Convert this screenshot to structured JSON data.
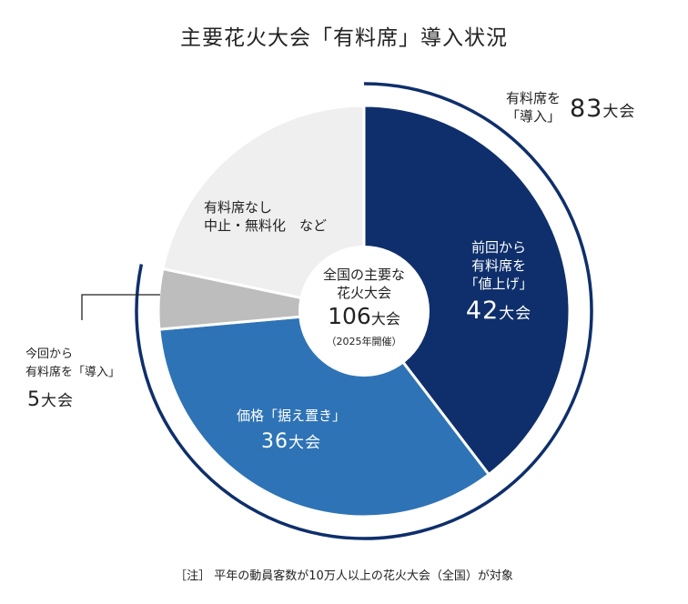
{
  "chart_data": {
    "type": "pie",
    "title": "主要花火大会「有料席」導入状況",
    "center_label": {
      "line1": "全国の主要な",
      "line2": "花火大会",
      "value": "106",
      "unit": "大会",
      "note": "（2025年開催）"
    },
    "total": 106,
    "slices": [
      {
        "label_lines": [
          "前回から",
          "有料席を",
          "「値上げ」"
        ],
        "value": 42,
        "value_text": "42",
        "unit": "大会",
        "color": "#0e2f6b"
      },
      {
        "label_lines": [
          "価格「据え置き」"
        ],
        "value": 36,
        "value_text": "36",
        "unit": "大会",
        "color": "#2e73b6"
      },
      {
        "label_lines": [
          "今回から",
          "有料席を「導入」"
        ],
        "value": 5,
        "value_text": "5",
        "unit": "大会",
        "color": "#bdbdbd"
      },
      {
        "label_lines": [
          "有料席なし",
          "中止・無料化　など"
        ],
        "value": 23,
        "color": "#efefef"
      }
    ],
    "group_arc": {
      "label_lines": [
        "有料席を",
        "「導入」"
      ],
      "value": 83,
      "value_text": "83",
      "unit": "大会",
      "color": "#0e2f6b"
    },
    "footnote": "［注］ 平年の動員客数が10万人以上の花火大会（全国）が対象"
  }
}
